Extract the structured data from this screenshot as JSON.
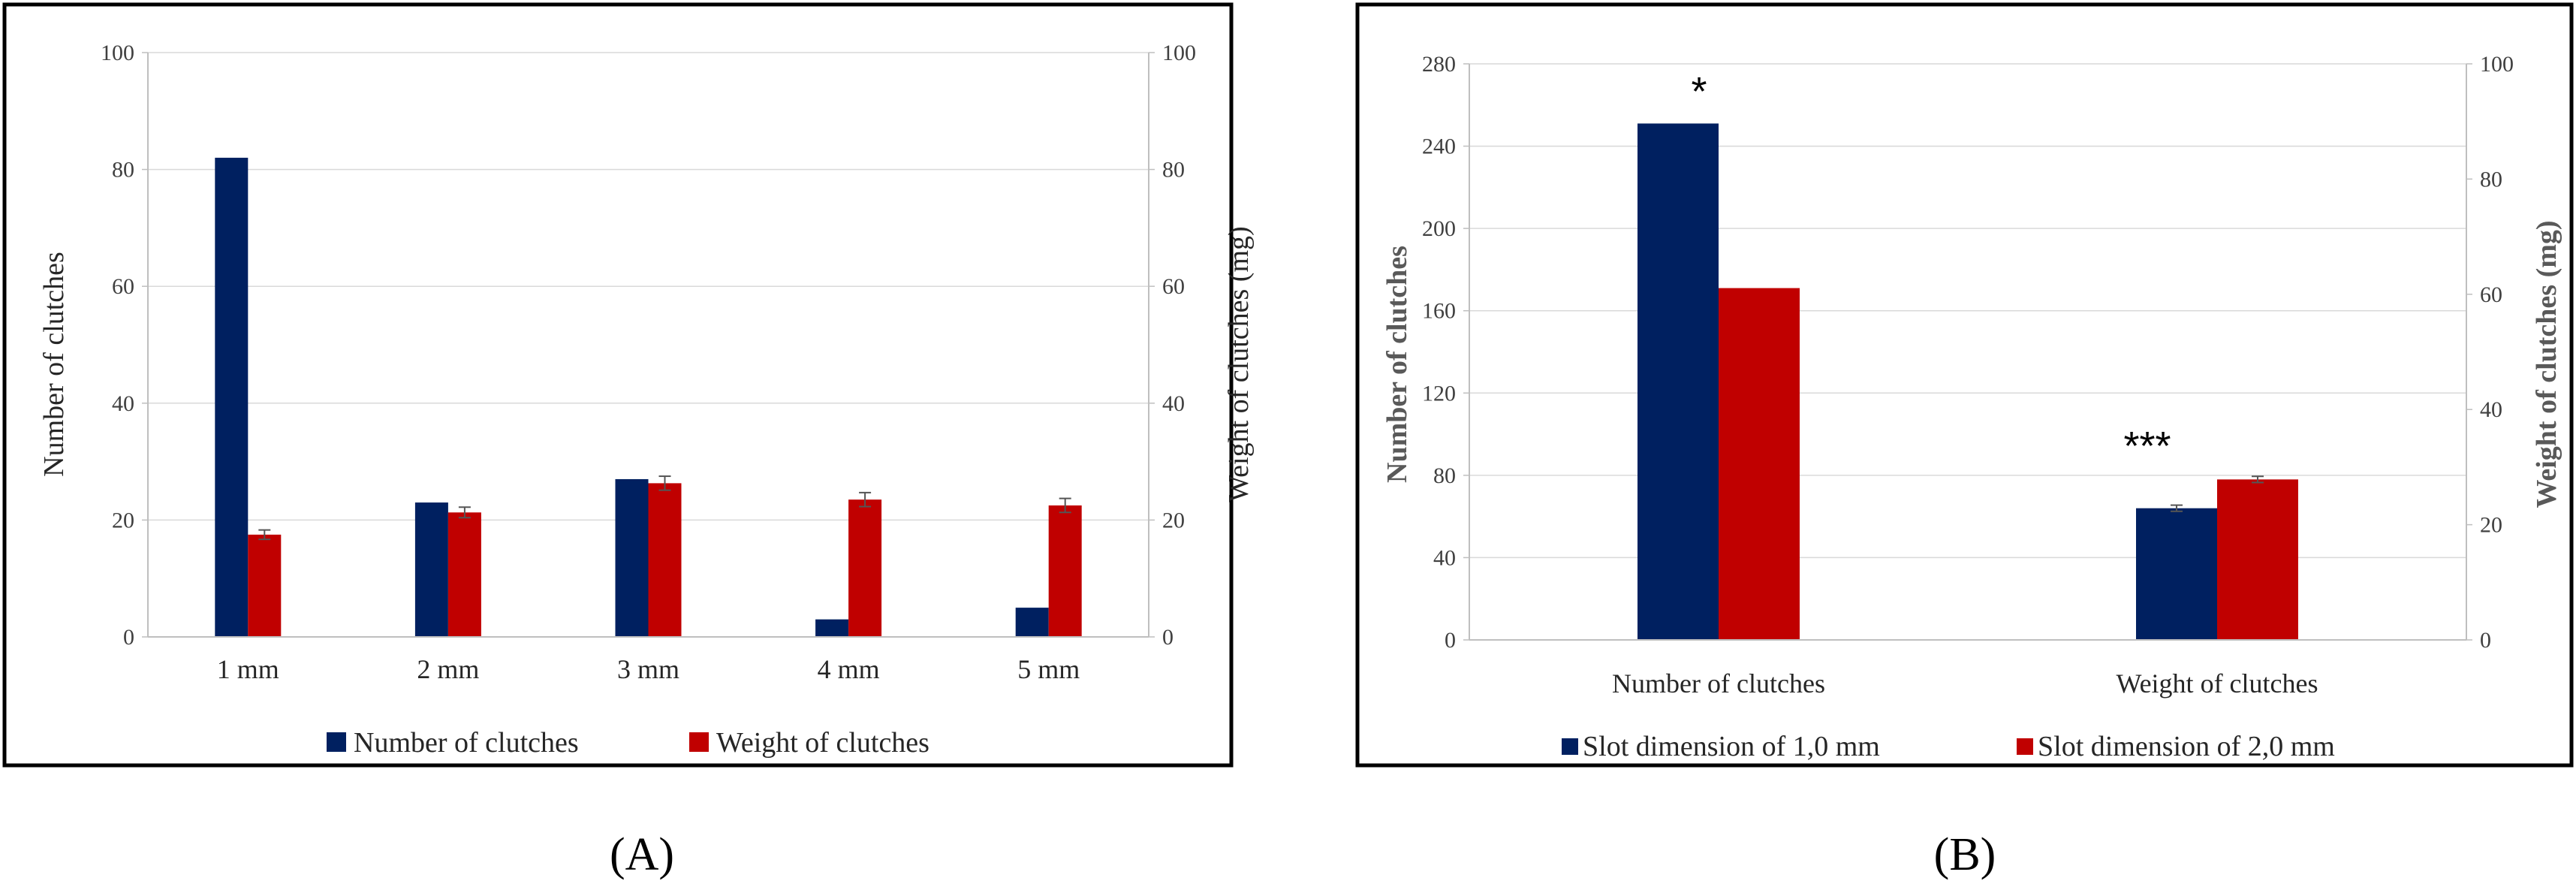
{
  "colors": {
    "series1": "#002060",
    "series2": "#C00000",
    "grid": "#d9d9d9",
    "axis": "#bfbfbf",
    "frame": "#000000"
  },
  "chart_data": [
    {
      "panel": "(A)",
      "type": "bar",
      "categories": [
        "1 mm",
        "2 mm",
        "3 mm",
        "4 mm",
        "5 mm"
      ],
      "series": [
        {
          "name": "Number of clutches",
          "axis": "left",
          "values": [
            82,
            23,
            27,
            3,
            5
          ],
          "errors": [
            0,
            0,
            0,
            0,
            0
          ]
        },
        {
          "name": "Weight of clutches",
          "axis": "right",
          "values": [
            17.5,
            21.3,
            26.3,
            23.5,
            22.5
          ],
          "errors": [
            0.8,
            0.9,
            1.2,
            1.2,
            1.2
          ]
        }
      ],
      "ylabel": "Number of clutches",
      "y2label": "Weight of clutches (mg)",
      "ylim": [
        0,
        100
      ],
      "y2lim": [
        0,
        100
      ],
      "yticks": [
        "0",
        "20",
        "40",
        "60",
        "80",
        "100"
      ],
      "y2ticks": [
        "0",
        "20",
        "40",
        "60",
        "80",
        "100"
      ],
      "grid": true,
      "legend": "bottom"
    },
    {
      "panel": "(B)",
      "type": "bar",
      "categories": [
        "Number of clutches",
        "Weight of clutches"
      ],
      "series": [
        {
          "name": "Slot dimension of 1,0 mm",
          "values": [
            251,
            64
          ],
          "errors": [
            0,
            1.5
          ]
        },
        {
          "name": "Slot dimension of 2,0 mm",
          "values": [
            171,
            78
          ],
          "errors": [
            0,
            1.5
          ]
        }
      ],
      "ylabel": "Number of clutches",
      "y2label": "Weight of clutches (mg)",
      "ylim": [
        0,
        280
      ],
      "y2lim": [
        0,
        100
      ],
      "yticks": [
        "0",
        "40",
        "80",
        "120",
        "160",
        "200",
        "240",
        "280"
      ],
      "y2ticks": [
        "0",
        "20",
        "40",
        "60",
        "80",
        "100"
      ],
      "grid": true,
      "legend": "bottom",
      "annotations": [
        "*",
        "***"
      ]
    }
  ]
}
